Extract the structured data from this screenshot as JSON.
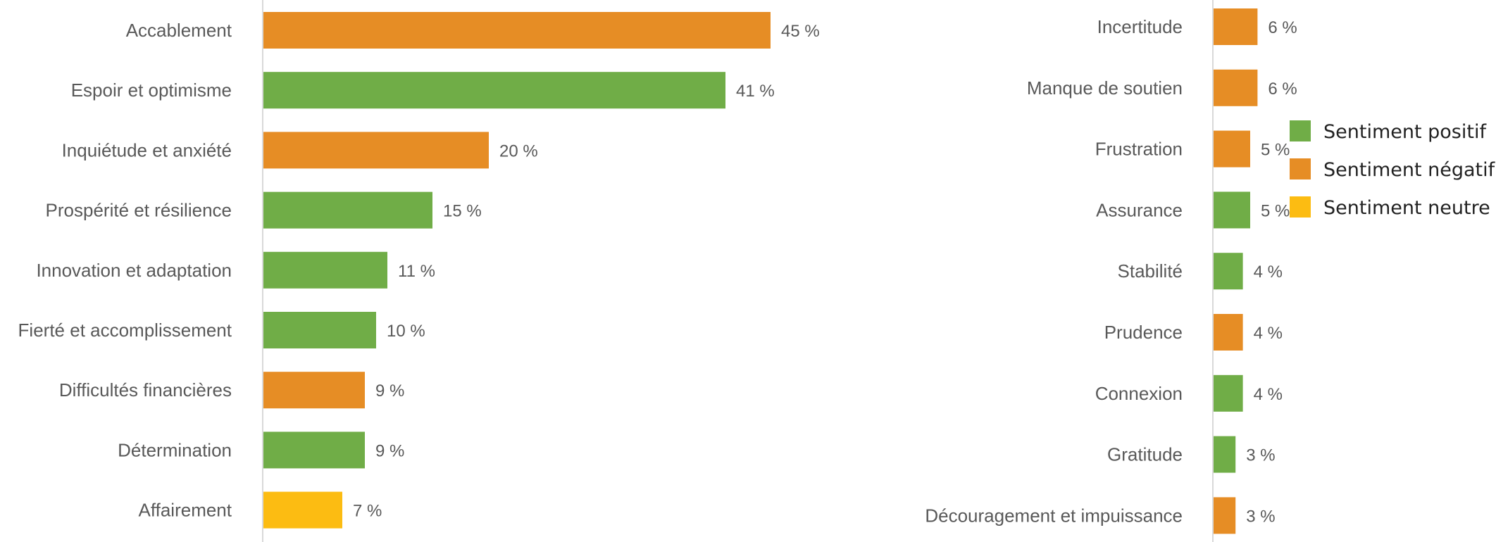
{
  "colors": {
    "positive": "#70ad47",
    "negative": "#e68d25",
    "neutral": "#fcbc12"
  },
  "legend": [
    {
      "key": "positive",
      "label": "Sentiment positif"
    },
    {
      "key": "negative",
      "label": "Sentiment négatif"
    },
    {
      "key": "neutral",
      "label": "Sentiment neutre"
    }
  ],
  "chart_data": [
    {
      "type": "bar",
      "orientation": "horizontal",
      "xlim": [
        0,
        45
      ],
      "categories": [
        "Accablement",
        "Espoir et optimisme",
        "Inquiétude et anxiété",
        "Prospérité et résilience",
        "Innovation et adaptation",
        "Fierté et accomplissement",
        "Difficultés financières",
        "Détermination",
        "Affairement"
      ],
      "values": [
        45,
        41,
        20,
        15,
        11,
        10,
        9,
        9,
        7
      ],
      "value_labels": [
        "45 %",
        "41 %",
        "20 %",
        "15 %",
        "11 %",
        "10 %",
        "9 %",
        "9 %",
        "7 %"
      ],
      "sentiment": [
        "negative",
        "positive",
        "negative",
        "positive",
        "positive",
        "positive",
        "negative",
        "positive",
        "neutral"
      ]
    },
    {
      "type": "bar",
      "orientation": "horizontal",
      "xlim": [
        0,
        45
      ],
      "categories": [
        "Incertitude",
        "Manque de soutien",
        "Frustration",
        "Assurance",
        "Stabilité",
        "Prudence",
        "Connexion",
        "Gratitude",
        "Découragement et impuissance"
      ],
      "values": [
        6,
        6,
        5,
        5,
        4,
        4,
        4,
        3,
        3
      ],
      "value_labels": [
        "6 %",
        "6 %",
        "5 %",
        "5 %",
        "4 %",
        "4 %",
        "4 %",
        "3 %",
        "3 %"
      ],
      "sentiment": [
        "negative",
        "negative",
        "negative",
        "positive",
        "positive",
        "negative",
        "positive",
        "positive",
        "negative"
      ]
    }
  ]
}
